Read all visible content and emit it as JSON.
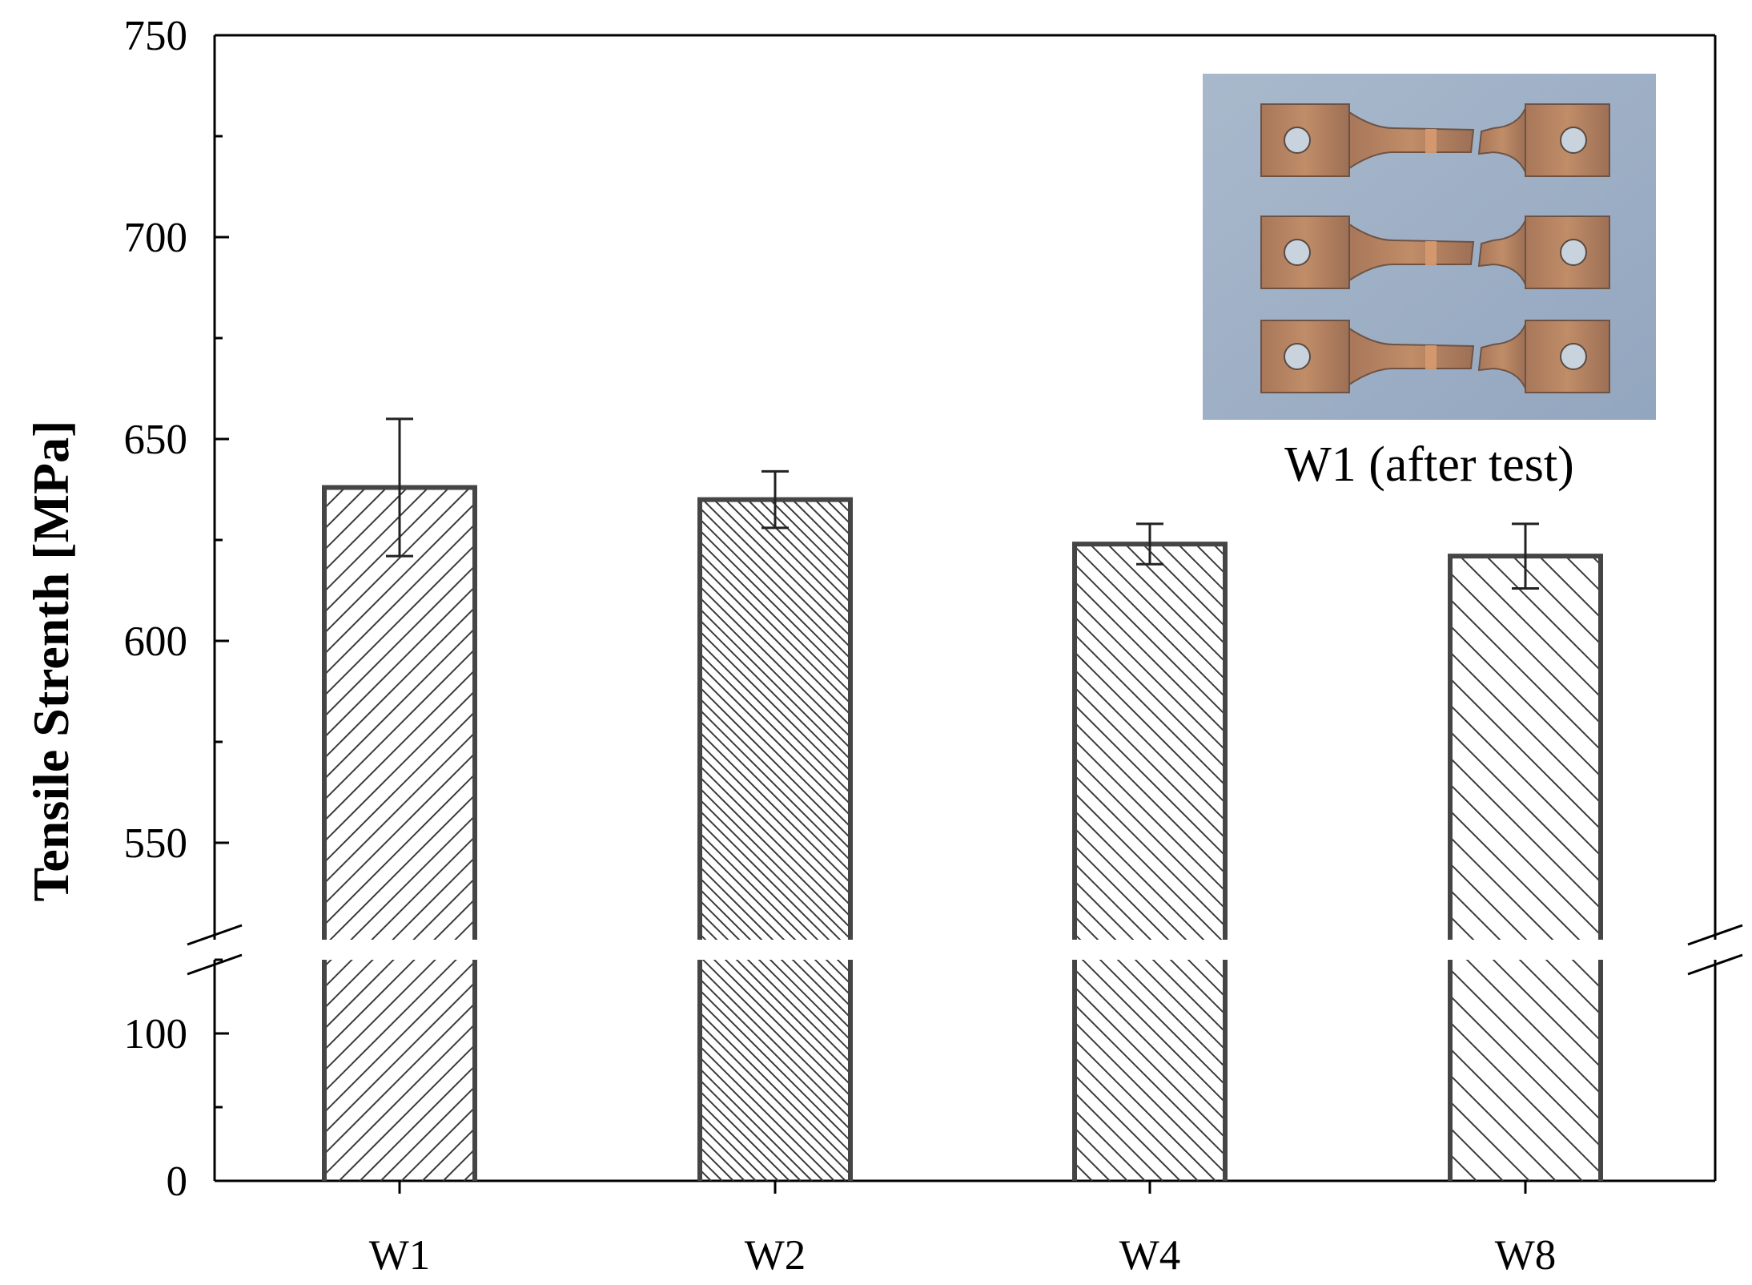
{
  "chart_data": {
    "type": "bar",
    "categories": [
      "W1",
      "W2",
      "W4",
      "W8"
    ],
    "values": [
      638,
      635,
      624,
      621
    ],
    "errors": [
      {
        "low": 621,
        "high": 655
      },
      {
        "low": 628,
        "high": 642
      },
      {
        "low": 619,
        "high": 629
      },
      {
        "low": 613,
        "high": 629
      }
    ],
    "hatch_spacing": [
      26,
      14,
      22,
      33
    ],
    "hatch_direction": [
      "forward",
      "back",
      "back",
      "back"
    ],
    "ylabel": "Tensile Strenth [MPa]",
    "xlabel": "",
    "ylim": [
      0,
      750
    ],
    "axis_break": {
      "lower_segment": [
        0,
        150
      ],
      "upper_segment": [
        526,
        750
      ]
    },
    "yticks_upper": [
      "550",
      "600",
      "650",
      "700",
      "750"
    ],
    "yticks_lower": [
      "0",
      "100"
    ],
    "grid": false,
    "legend": "none",
    "colors": {
      "bar_outline": "#454545",
      "hatch": "#3a3a3a",
      "axis": "#000000",
      "photo_bg": "#9fb0c5",
      "specimen": "#b2845f"
    }
  },
  "inset": {
    "caption": "W1 (after test)",
    "photo_description_icon": "tensile-specimens-photo"
  }
}
